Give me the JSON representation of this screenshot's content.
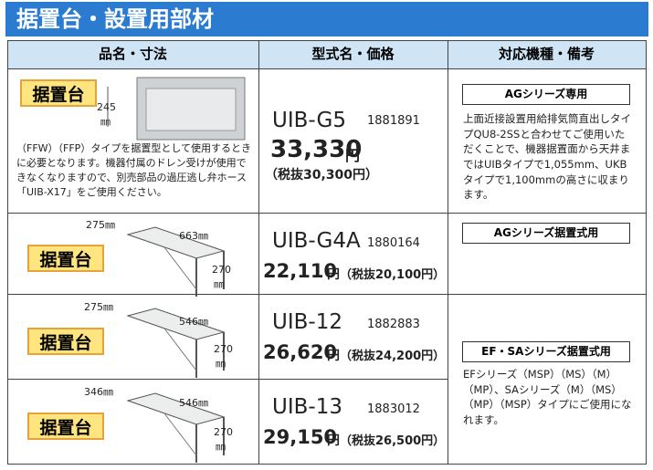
{
  "header": {
    "title": "据置台・設置用部材"
  },
  "table": {
    "columns": [
      "品名・寸法",
      "型式名・価格",
      "対応機種・備考"
    ],
    "rows": [
      {
        "label": "据置台",
        "dims": [
          "245",
          "㎜"
        ],
        "description": "（FFW）（FFP）タイプを据置型として使用するときに必要となります。機器付属のドレン受けが使用できなくなりますので、別売部品の過圧逃し弁ホース「UIB-X17」をご使用ください。",
        "model": "UIB-G5",
        "code": "1881891",
        "price": "33,330",
        "yen": "円",
        "tax": "（税抜30,300円）"
      },
      {
        "label": "据置台",
        "dims": [
          "275㎜",
          "663㎜",
          "270",
          "㎜"
        ],
        "model": "UIB-G4A",
        "code": "1880164",
        "price": "22,110",
        "yen": "円",
        "tax": "（税抜20,100円）"
      },
      {
        "label": "据置台",
        "dims": [
          "275㎜",
          "546㎜",
          "270",
          "㎜"
        ],
        "model": "UIB-12",
        "code": "1882883",
        "price": "26,620",
        "yen": "円",
        "tax": "（税抜24,200円）"
      },
      {
        "label": "据置台",
        "dims": [
          "346㎜",
          "546㎜",
          "270",
          "㎜"
        ],
        "model": "UIB-13",
        "code": "1883012",
        "price": "29,150",
        "yen": "円",
        "tax": "（税抜26,500円）"
      }
    ],
    "remarks": [
      {
        "badge": "AGシリーズ専用",
        "text": "上面近接設置用給排気筒直出しタイプQU8-2SSと合わせてご使用いただくことで、機器据置面から天井まではUIBタイプで1,055mm、UKBタイプで1,100mmの高さに収まります。"
      },
      {
        "badge": "AGシリーズ据置式用"
      },
      {
        "badge": "EF・SAシリーズ据置式用",
        "text": "EFシリーズ（MSP）（MS）（M）（MP）、SAシリーズ（M）（MS）（MP）（MSP）タイプにご使用になれます。"
      }
    ]
  }
}
